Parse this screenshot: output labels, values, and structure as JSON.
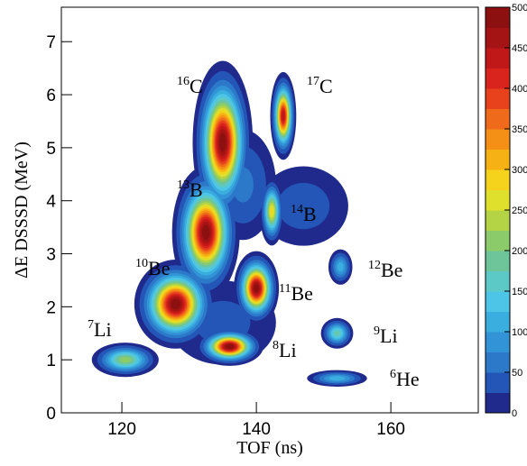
{
  "chart_data": {
    "type": "contour",
    "xlabel": "TOF (ns)",
    "ylabel": "ΔE  DSSSD (MeV)",
    "xlim": [
      111,
      173
    ],
    "xticks": [
      120,
      140,
      160
    ],
    "ylim": [
      0,
      7.65
    ],
    "yticks": [
      0,
      1,
      2,
      3,
      4,
      5,
      6,
      7
    ],
    "zlim": [
      0,
      500
    ],
    "zticks": [
      0,
      50,
      100,
      150,
      200,
      250,
      300,
      350,
      400,
      450,
      500
    ],
    "colorscale": [
      "#1f2a8c",
      "#2356b7",
      "#2b79c8",
      "#3293d6",
      "#3aaede",
      "#4dc5e6",
      "#5dc9c6",
      "#6fc59a",
      "#8ccb6a",
      "#b5d445",
      "#dfe02b",
      "#f5d21b",
      "#f6b114",
      "#f39015",
      "#ef6a1a",
      "#e8421d",
      "#d9231d",
      "#c01818",
      "#a51414",
      "#8c1010"
    ],
    "clusters": [
      {
        "x": 138,
        "y": 4.3,
        "sx": 2.6,
        "sy": 0.55,
        "peak": 60
      },
      {
        "x": 147,
        "y": 3.9,
        "sx": 4.0,
        "sy": 0.45,
        "peak": 40
      },
      {
        "x": 135,
        "y": 1.7,
        "sx": 5.0,
        "sy": 0.5,
        "peak": 35
      },
      {
        "x": 135,
        "y": 5.1,
        "sx": 1.6,
        "sy": 0.55,
        "peak": 500
      },
      {
        "x": 144,
        "y": 5.6,
        "sx": 0.7,
        "sy": 0.3,
        "peak": 450
      },
      {
        "x": 132.5,
        "y": 3.4,
        "sx": 1.8,
        "sy": 0.45,
        "peak": 500
      },
      {
        "x": 142.3,
        "y": 3.8,
        "sx": 0.7,
        "sy": 0.25,
        "peak": 280
      },
      {
        "x": 128,
        "y": 2.05,
        "sx": 2.2,
        "sy": 0.3,
        "peak": 500
      },
      {
        "x": 140,
        "y": 2.35,
        "sx": 1.2,
        "sy": 0.25,
        "peak": 500
      },
      {
        "x": 152.5,
        "y": 2.75,
        "sx": 0.8,
        "sy": 0.15,
        "peak": 120
      },
      {
        "x": 120.5,
        "y": 1.0,
        "sx": 2.0,
        "sy": 0.13,
        "peak": 220
      },
      {
        "x": 136,
        "y": 1.25,
        "sx": 1.8,
        "sy": 0.13,
        "peak": 500
      },
      {
        "x": 152,
        "y": 1.5,
        "sx": 1.0,
        "sy": 0.12,
        "peak": 180
      },
      {
        "x": 152,
        "y": 0.65,
        "sx": 2.0,
        "sy": 0.07,
        "peak": 120
      }
    ],
    "annotations": [
      {
        "mass": "16",
        "element": "C"
      },
      {
        "mass": "17",
        "element": "C"
      },
      {
        "mass": "13",
        "element": "B"
      },
      {
        "mass": "14",
        "element": "B"
      },
      {
        "mass": "10",
        "element": "Be"
      },
      {
        "mass": "11",
        "element": "Be"
      },
      {
        "mass": "12",
        "element": "Be"
      },
      {
        "mass": "7",
        "element": "Li"
      },
      {
        "mass": "8",
        "element": "Li"
      },
      {
        "mass": "9",
        "element": "Li"
      },
      {
        "mass": "6",
        "element": "He"
      }
    ]
  }
}
